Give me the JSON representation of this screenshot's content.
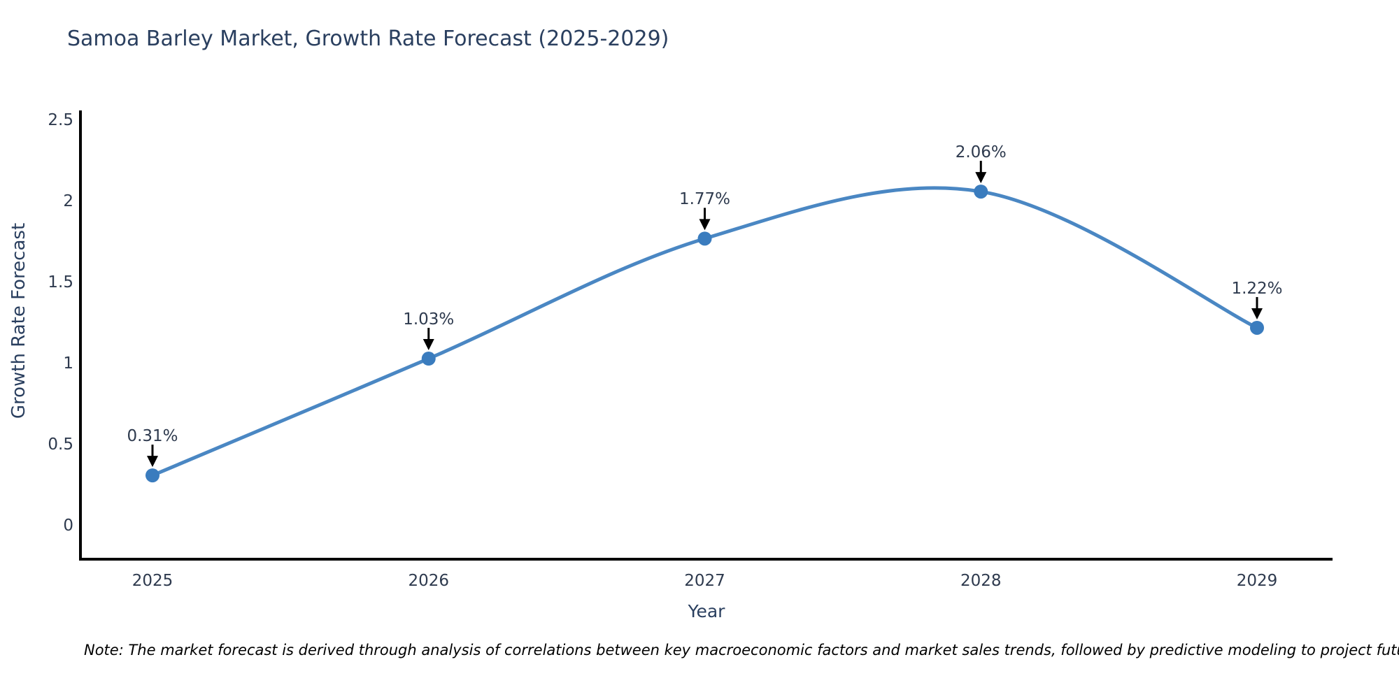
{
  "chart_data": {
    "type": "line",
    "title": "Samoa Barley Market, Growth Rate Forecast (2025-2029)",
    "xlabel": "Year",
    "ylabel": "Growth Rate Forecast",
    "x": [
      2025,
      2026,
      2027,
      2028,
      2029
    ],
    "series": [
      {
        "name": "Growth Rate Forecast",
        "values": [
          0.31,
          1.03,
          1.77,
          2.06,
          1.22
        ]
      }
    ],
    "point_labels": [
      "0.31%",
      "1.03%",
      "1.77%",
      "2.06%",
      "1.22%"
    ],
    "xticks": [
      "2025",
      "2026",
      "2027",
      "2028",
      "2029"
    ],
    "yticks": [
      "0",
      "0.5",
      "1",
      "1.5",
      "2",
      "2.5"
    ],
    "ytick_values": [
      0,
      0.5,
      1,
      1.5,
      2,
      2.5
    ],
    "ylim": [
      -0.22,
      2.55
    ],
    "grid": false,
    "legend": "none",
    "line_style": "smooth-spline",
    "marker": "circle",
    "annotation_arrows": "down-arrow-to-point",
    "colors": {
      "line": "#4a87c3",
      "marker": "#3a7cbe",
      "arrow": "#000000",
      "title_text": "#2a3f5f",
      "tick_text": "#2e3a4e",
      "spine": "#000000",
      "background": "#ffffff"
    }
  },
  "note": "Note: The market forecast is derived through analysis of correlations between key macroeconomic factors and market sales trends, followed by predictive modeling to project future sales"
}
